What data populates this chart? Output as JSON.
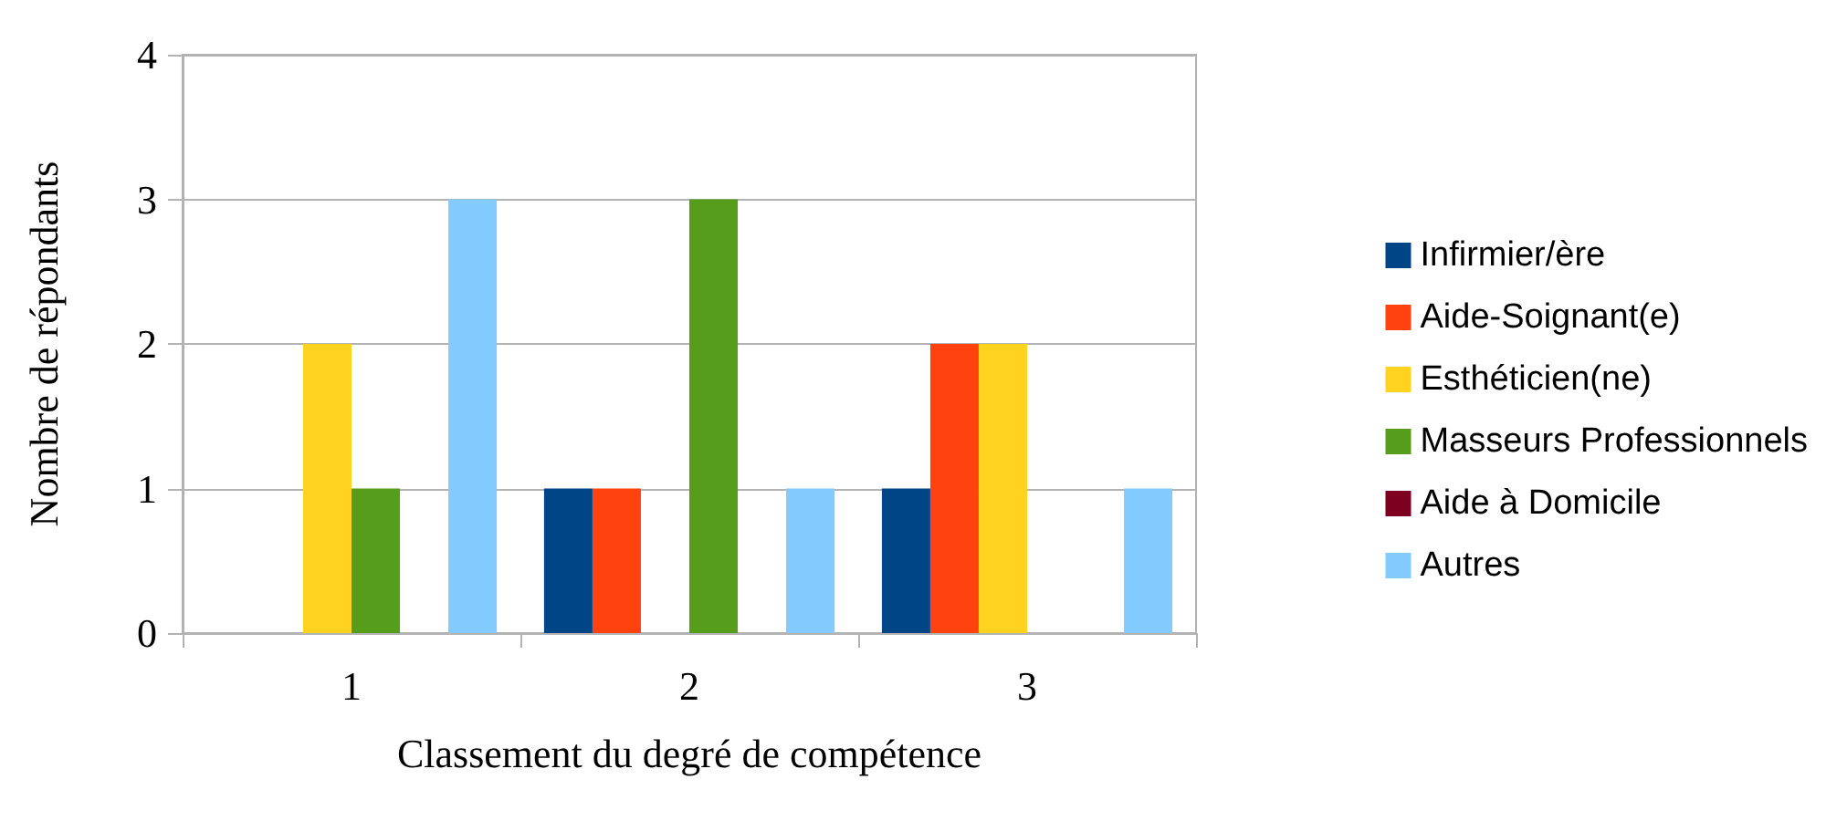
{
  "chart_data": {
    "type": "bar",
    "xlabel": "Classement du degré de compétence",
    "ylabel": "Nombre de répondants",
    "categories": [
      "1",
      "2",
      "3"
    ],
    "series": [
      {
        "name": "Infirmier/ère",
        "color": "#004586",
        "values": [
          0,
          1,
          1
        ]
      },
      {
        "name": "Aide-Soignant(e)",
        "color": "#ff420e",
        "values": [
          0,
          1,
          2
        ]
      },
      {
        "name": "Esthéticien(ne)",
        "color": "#ffd320",
        "values": [
          2,
          0,
          2
        ]
      },
      {
        "name": "Masseurs Professionnels",
        "color": "#579d1c",
        "values": [
          1,
          3,
          0
        ]
      },
      {
        "name": "Aide à Domicile",
        "color": "#7e0021",
        "values": [
          0,
          0,
          0
        ]
      },
      {
        "name": "Autres",
        "color": "#83caff",
        "values": [
          3,
          1,
          1
        ]
      }
    ],
    "ylim": [
      0,
      4
    ],
    "yticks": [
      0,
      1,
      2,
      3,
      4
    ],
    "grid": "y",
    "legend": "right"
  }
}
